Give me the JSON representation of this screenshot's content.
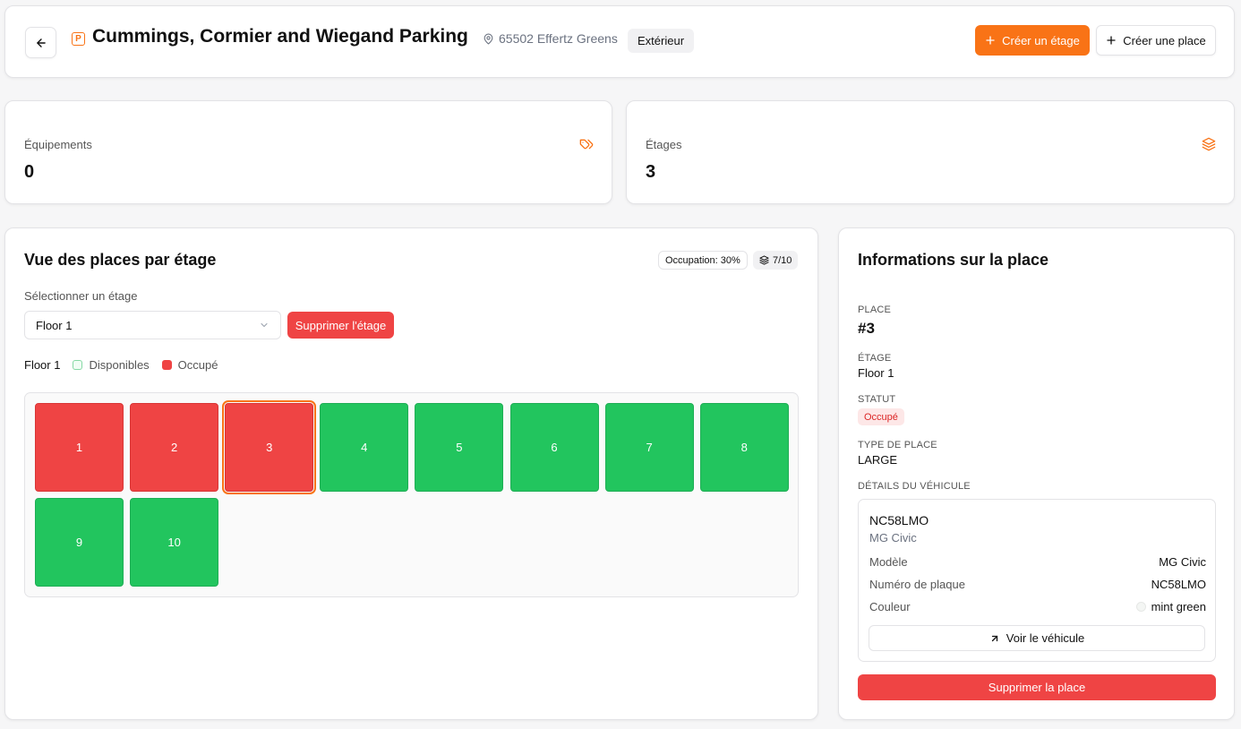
{
  "header": {
    "title": "Cummings, Cormier and Wiegand Parking",
    "address": "65502 Effertz Greens",
    "type_badge": "Extérieur",
    "create_floor_label": "Créer un étage",
    "create_place_label": "Créer une place",
    "icons": {
      "back": "arrow-left-icon",
      "parking": "parking-icon",
      "address": "map-pin-icon",
      "plus": "plus-icon"
    }
  },
  "stats": {
    "equipment": {
      "label": "Équipements",
      "value": "0",
      "icon": "tags-icon"
    },
    "floors": {
      "label": "Étages",
      "value": "3",
      "icon": "layers-icon"
    }
  },
  "places_panel": {
    "title": "Vue des places par étage",
    "occupation_badge": "Occupation: 30%",
    "count_badge": "7/10",
    "select_label": "Sélectionner un étage",
    "selected_floor": "Floor 1",
    "delete_floor_label": "Supprimer l'étage",
    "legend": {
      "floor": "Floor 1",
      "available": "Disponibles",
      "occupied": "Occupé"
    },
    "spots": [
      {
        "number": "1",
        "status": "occupied"
      },
      {
        "number": "2",
        "status": "occupied"
      },
      {
        "number": "3",
        "status": "occupied",
        "selected": true
      },
      {
        "number": "4",
        "status": "available"
      },
      {
        "number": "5",
        "status": "available"
      },
      {
        "number": "6",
        "status": "available"
      },
      {
        "number": "7",
        "status": "available"
      },
      {
        "number": "8",
        "status": "available"
      },
      {
        "number": "9",
        "status": "available"
      },
      {
        "number": "10",
        "status": "available"
      }
    ]
  },
  "info_panel": {
    "title": "Informations sur la place",
    "place_label": "PLACE",
    "place_value": "#3",
    "floor_label": "ÉTAGE",
    "floor_value": "Floor 1",
    "status_label": "STATUT",
    "status_value": "Occupé",
    "type_label": "TYPE DE PLACE",
    "type_value": "LARGE",
    "vehicle_label": "DÉTAILS DU VÉHICULE",
    "vehicle": {
      "plate": "NC58LMO",
      "model_line": "MG Civic",
      "model_key": "Modèle",
      "model_value": "MG Civic",
      "plate_key": "Numéro de plaque",
      "plate_value": "NC58LMO",
      "color_key": "Couleur",
      "color_value": "mint green",
      "view_label": "Voir le véhicule"
    },
    "delete_place_label": "Supprimer la place"
  },
  "colors": {
    "accent": "#f97316",
    "occupied": "#ef4444",
    "available": "#22c55e"
  }
}
